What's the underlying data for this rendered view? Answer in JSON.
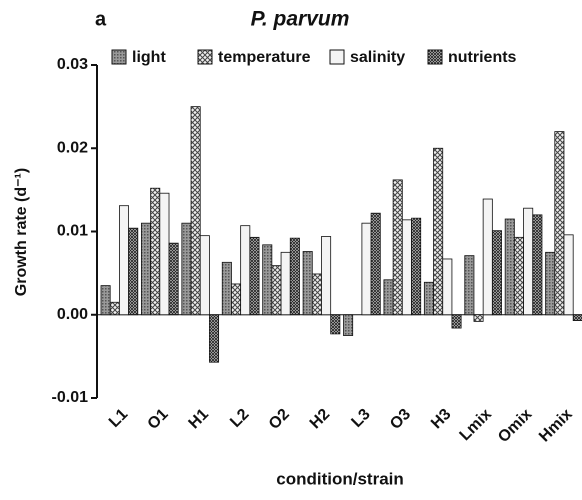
{
  "chart_data": {
    "type": "bar",
    "panel_label": "a",
    "title": "P. parvum",
    "ylabel": "Growth rate (d⁻¹)",
    "xlabel": "condition/strain",
    "categories": [
      "L1",
      "O1",
      "H1",
      "L2",
      "O2",
      "H2",
      "L3",
      "O3",
      "H3",
      "Lmix",
      "Omix",
      "Hmix"
    ],
    "series": [
      {
        "name": "light",
        "color": "#8a8a8a",
        "pattern": "dots",
        "values": [
          0.0035,
          0.011,
          0.011,
          0.0063,
          0.0084,
          0.0076,
          -0.0025,
          0.0042,
          0.0039,
          0.0071,
          0.0115,
          0.0075
        ]
      },
      {
        "name": "temperature",
        "color": "#d0d0d0",
        "pattern": "crosshatch",
        "values": [
          0.0015,
          0.0152,
          0.025,
          0.0037,
          0.0059,
          0.0049,
          0,
          0.0162,
          0.02,
          -0.0008,
          0.0093,
          0.022
        ]
      },
      {
        "name": "salinity",
        "color": "#f4f4f4",
        "pattern": "none",
        "values": [
          0.0131,
          0.0146,
          0.0095,
          0.0107,
          0.0075,
          0.0094,
          0.011,
          0.0114,
          0.0067,
          0.0139,
          0.0128,
          0.0096
        ]
      },
      {
        "name": "nutrients",
        "color": "#b0b0b0",
        "pattern": "densehatch",
        "values": [
          0.0104,
          0.0086,
          -0.0057,
          0.0093,
          0.0092,
          -0.0023,
          0.0122,
          0.0116,
          -0.0016,
          0.0101,
          0.012,
          -0.0007
        ]
      }
    ],
    "ylim": [
      -0.01,
      0.03
    ],
    "yticks": [
      -0.01,
      {
        "value": 0,
        "label": "0.00"
      },
      0.01,
      0.02,
      0.03
    ],
    "legend": "top"
  }
}
